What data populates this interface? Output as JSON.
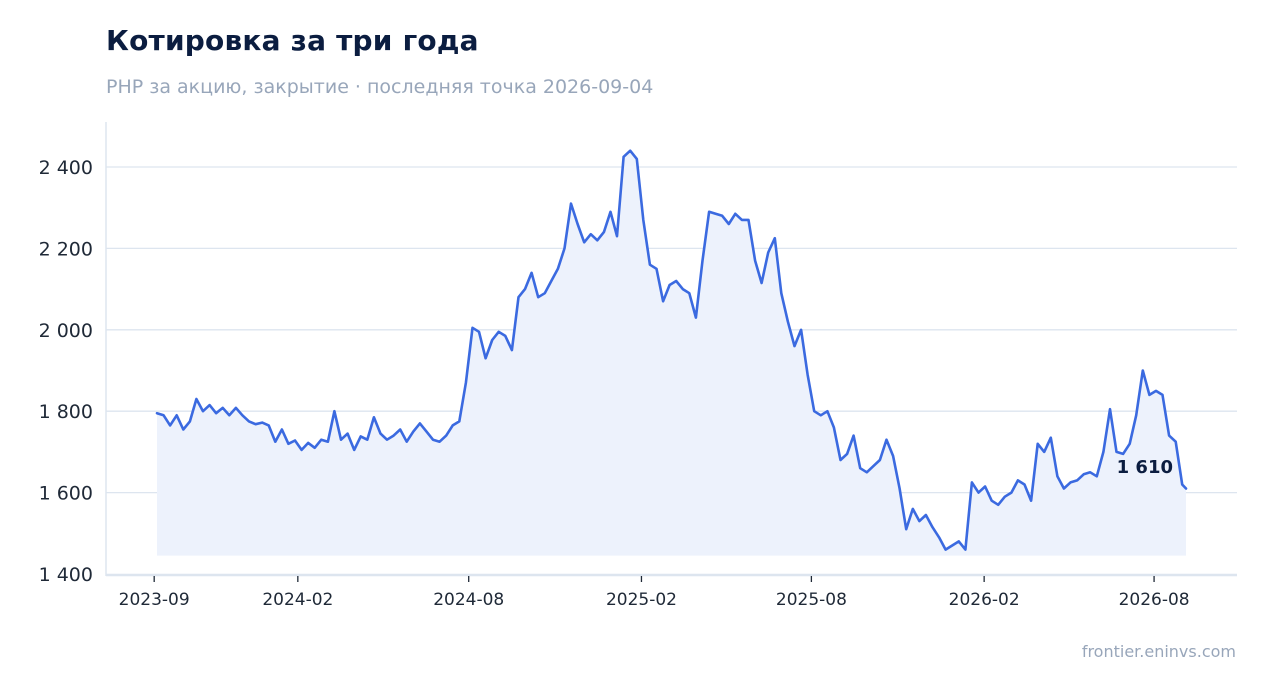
{
  "header": {
    "title": "Котировка за три года",
    "subtitle": "PHP за акцию, закрытие · последняя точка 2026-09-04"
  },
  "footer": {
    "source": "frontier.eninvs.com"
  },
  "colors": {
    "line": "#3b6ae0",
    "area": "#edf2fc",
    "grid": "#dde5ef",
    "axis": "#dde5ef"
  },
  "chart_data": {
    "type": "area",
    "title": "Котировка за три года",
    "xlabel": "",
    "ylabel": "",
    "x_range": [
      "2023-09-04",
      "2026-09-04"
    ],
    "ylim": [
      1400,
      2510
    ],
    "yticks": [
      1400,
      1600,
      1800,
      2000,
      2200,
      2400
    ],
    "ytick_labels": [
      "1 400",
      "1 600",
      "1 800",
      "2 000",
      "2 200",
      "2 400"
    ],
    "xticks": [
      "2023-09-01",
      "2024-02-01",
      "2024-08-01",
      "2025-02-01",
      "2025-08-01",
      "2026-02-01",
      "2026-08-01"
    ],
    "xtick_labels": [
      "2023-09",
      "2024-02",
      "2024-08",
      "2025-02",
      "2025-08",
      "2026-02",
      "2026-08"
    ],
    "grid": true,
    "area_baseline": 1445,
    "last_value_label": "1 610",
    "series": [
      {
        "points": [
          [
            "2023-09-04",
            1795
          ],
          [
            "2023-09-11",
            1790
          ],
          [
            "2023-09-18",
            1765
          ],
          [
            "2023-09-25",
            1790
          ],
          [
            "2023-10-02",
            1755
          ],
          [
            "2023-10-09",
            1775
          ],
          [
            "2023-10-16",
            1830
          ],
          [
            "2023-10-23",
            1800
          ],
          [
            "2023-10-30",
            1815
          ],
          [
            "2023-11-06",
            1795
          ],
          [
            "2023-11-13",
            1808
          ],
          [
            "2023-11-20",
            1790
          ],
          [
            "2023-11-27",
            1808
          ],
          [
            "2023-12-04",
            1790
          ],
          [
            "2023-12-11",
            1775
          ],
          [
            "2023-12-18",
            1768
          ],
          [
            "2023-12-25",
            1772
          ],
          [
            "2024-01-01",
            1765
          ],
          [
            "2024-01-08",
            1725
          ],
          [
            "2024-01-15",
            1755
          ],
          [
            "2024-01-22",
            1720
          ],
          [
            "2024-01-29",
            1728
          ],
          [
            "2024-02-05",
            1705
          ],
          [
            "2024-02-12",
            1722
          ],
          [
            "2024-02-19",
            1710
          ],
          [
            "2024-02-26",
            1730
          ],
          [
            "2024-03-04",
            1725
          ],
          [
            "2024-03-11",
            1800
          ],
          [
            "2024-03-18",
            1730
          ],
          [
            "2024-03-25",
            1745
          ],
          [
            "2024-04-01",
            1705
          ],
          [
            "2024-04-08",
            1738
          ],
          [
            "2024-04-15",
            1730
          ],
          [
            "2024-04-22",
            1785
          ],
          [
            "2024-04-29",
            1745
          ],
          [
            "2024-05-06",
            1730
          ],
          [
            "2024-05-13",
            1740
          ],
          [
            "2024-05-20",
            1755
          ],
          [
            "2024-05-27",
            1725
          ],
          [
            "2024-06-03",
            1750
          ],
          [
            "2024-06-10",
            1770
          ],
          [
            "2024-06-17",
            1750
          ],
          [
            "2024-06-24",
            1730
          ],
          [
            "2024-07-01",
            1725
          ],
          [
            "2024-07-08",
            1740
          ],
          [
            "2024-07-15",
            1765
          ],
          [
            "2024-07-22",
            1775
          ],
          [
            "2024-07-29",
            1870
          ],
          [
            "2024-08-05",
            2005
          ],
          [
            "2024-08-12",
            1995
          ],
          [
            "2024-08-19",
            1930
          ],
          [
            "2024-08-26",
            1975
          ],
          [
            "2024-09-02",
            1995
          ],
          [
            "2024-09-09",
            1985
          ],
          [
            "2024-09-16",
            1950
          ],
          [
            "2024-09-23",
            2080
          ],
          [
            "2024-09-30",
            2100
          ],
          [
            "2024-10-07",
            2140
          ],
          [
            "2024-10-14",
            2080
          ],
          [
            "2024-10-21",
            2090
          ],
          [
            "2024-10-28",
            2120
          ],
          [
            "2024-11-04",
            2150
          ],
          [
            "2024-11-11",
            2200
          ],
          [
            "2024-11-18",
            2310
          ],
          [
            "2024-11-25",
            2260
          ],
          [
            "2024-12-02",
            2215
          ],
          [
            "2024-12-09",
            2235
          ],
          [
            "2024-12-16",
            2220
          ],
          [
            "2024-12-23",
            2240
          ],
          [
            "2024-12-30",
            2290
          ],
          [
            "2025-01-06",
            2230
          ],
          [
            "2025-01-13",
            2425
          ],
          [
            "2025-01-20",
            2440
          ],
          [
            "2025-01-27",
            2420
          ],
          [
            "2025-02-03",
            2270
          ],
          [
            "2025-02-10",
            2160
          ],
          [
            "2025-02-17",
            2150
          ],
          [
            "2025-02-24",
            2070
          ],
          [
            "2025-03-03",
            2110
          ],
          [
            "2025-03-10",
            2120
          ],
          [
            "2025-03-17",
            2100
          ],
          [
            "2025-03-24",
            2090
          ],
          [
            "2025-03-31",
            2030
          ],
          [
            "2025-04-07",
            2170
          ],
          [
            "2025-04-14",
            2290
          ],
          [
            "2025-04-21",
            2285
          ],
          [
            "2025-04-28",
            2280
          ],
          [
            "2025-05-05",
            2260
          ],
          [
            "2025-05-12",
            2285
          ],
          [
            "2025-05-19",
            2270
          ],
          [
            "2025-05-26",
            2270
          ],
          [
            "2025-06-02",
            2170
          ],
          [
            "2025-06-09",
            2115
          ],
          [
            "2025-06-16",
            2190
          ],
          [
            "2025-06-23",
            2225
          ],
          [
            "2025-06-30",
            2090
          ],
          [
            "2025-07-07",
            2020
          ],
          [
            "2025-07-14",
            1960
          ],
          [
            "2025-07-21",
            2000
          ],
          [
            "2025-07-28",
            1890
          ],
          [
            "2025-08-04",
            1800
          ],
          [
            "2025-08-11",
            1790
          ],
          [
            "2025-08-18",
            1800
          ],
          [
            "2025-08-25",
            1760
          ],
          [
            "2025-09-01",
            1680
          ],
          [
            "2025-09-08",
            1695
          ],
          [
            "2025-09-15",
            1740
          ],
          [
            "2025-09-22",
            1660
          ],
          [
            "2025-09-29",
            1650
          ],
          [
            "2025-10-06",
            1665
          ],
          [
            "2025-10-13",
            1680
          ],
          [
            "2025-10-20",
            1730
          ],
          [
            "2025-10-27",
            1690
          ],
          [
            "2025-11-03",
            1610
          ],
          [
            "2025-11-10",
            1510
          ],
          [
            "2025-11-17",
            1560
          ],
          [
            "2025-11-24",
            1530
          ],
          [
            "2025-12-01",
            1545
          ],
          [
            "2025-12-08",
            1515
          ],
          [
            "2025-12-15",
            1490
          ],
          [
            "2025-12-22",
            1460
          ],
          [
            "2025-12-29",
            1470
          ],
          [
            "2026-01-05",
            1480
          ],
          [
            "2026-01-12",
            1460
          ],
          [
            "2026-01-19",
            1625
          ],
          [
            "2026-01-26",
            1600
          ],
          [
            "2026-02-02",
            1615
          ],
          [
            "2026-02-09",
            1580
          ],
          [
            "2026-02-16",
            1570
          ],
          [
            "2026-02-23",
            1590
          ],
          [
            "2026-03-02",
            1600
          ],
          [
            "2026-03-09",
            1630
          ],
          [
            "2026-03-16",
            1620
          ],
          [
            "2026-03-23",
            1580
          ],
          [
            "2026-03-30",
            1720
          ],
          [
            "2026-04-06",
            1700
          ],
          [
            "2026-04-13",
            1735
          ],
          [
            "2026-04-20",
            1640
          ],
          [
            "2026-04-27",
            1610
          ],
          [
            "2026-05-04",
            1625
          ],
          [
            "2026-05-11",
            1630
          ],
          [
            "2026-05-18",
            1645
          ],
          [
            "2026-05-25",
            1650
          ],
          [
            "2026-06-01",
            1640
          ],
          [
            "2026-06-08",
            1700
          ],
          [
            "2026-06-15",
            1805
          ],
          [
            "2026-06-22",
            1700
          ],
          [
            "2026-06-29",
            1695
          ],
          [
            "2026-07-06",
            1720
          ],
          [
            "2026-07-13",
            1790
          ],
          [
            "2026-07-20",
            1900
          ],
          [
            "2026-07-27",
            1840
          ],
          [
            "2026-08-03",
            1850
          ],
          [
            "2026-08-10",
            1840
          ],
          [
            "2026-08-17",
            1740
          ],
          [
            "2026-08-24",
            1725
          ],
          [
            "2026-08-31",
            1620
          ],
          [
            "2026-09-04",
            1610
          ]
        ]
      }
    ]
  }
}
